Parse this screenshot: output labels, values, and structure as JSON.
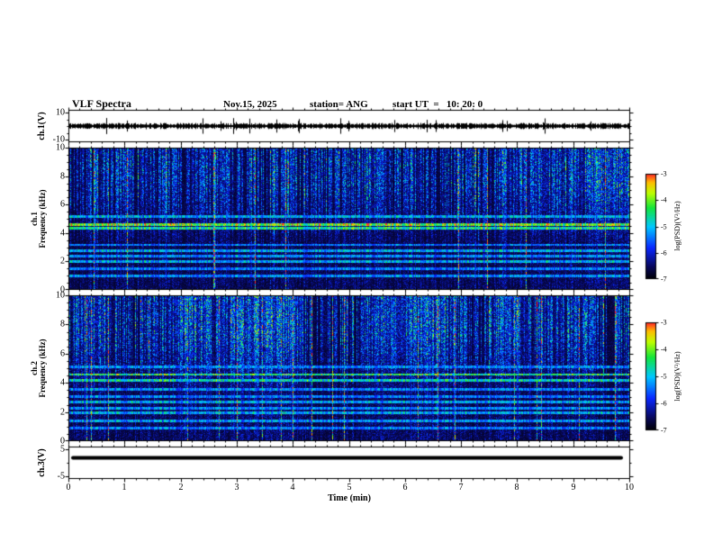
{
  "header": {
    "title": "VLF Spectra",
    "date": "Nov.15, 2025",
    "station": "station= ANG",
    "start_ut": "start UT  =   10: 20: 0"
  },
  "axes": {
    "x": {
      "label": "Time (min)",
      "lim": [
        0,
        10
      ],
      "ticks": [
        0,
        1,
        2,
        3,
        4,
        5,
        6,
        7,
        8,
        9,
        10
      ]
    },
    "ch1_voltage": {
      "label": "ch.1(V)",
      "lim": [
        -12,
        12
      ],
      "ticks": [
        10,
        -10
      ]
    },
    "ch1_freq": {
      "label_line1": "ch.1",
      "label_line2": "Frequency (kHz)",
      "lim": [
        0,
        10
      ],
      "ticks": [
        10,
        8,
        6,
        4,
        2,
        0
      ]
    },
    "ch2_freq": {
      "label_line1": "ch.2",
      "label_line2": "Frequency (kHz)",
      "lim": [
        0,
        10
      ],
      "ticks": [
        10,
        8,
        6,
        4,
        2,
        0
      ]
    },
    "ch3_voltage": {
      "label": "ch.3(V)",
      "lim": [
        -6.2,
        6.2
      ],
      "ticks": [
        5,
        -5
      ]
    }
  },
  "colorbar": {
    "label": "log(PSD)(V²/Hz)",
    "lim": [
      -7,
      -3
    ],
    "ticks": [
      -3,
      -4,
      -5,
      -6,
      -7
    ]
  },
  "chart_data": [
    {
      "type": "line",
      "name": "ch1_voltage_waveform",
      "ylabel": "ch.1(V)",
      "xlim": [
        0,
        10
      ],
      "ylim": [
        -12,
        12
      ],
      "yticks": [
        10,
        -10
      ],
      "mean_v": 0,
      "typical_amplitude_v": 2,
      "spike_amplitude_v": 5,
      "description": "Continuous broadband noise waveform centred on 0 V, envelope about ±2 V with frequent impulsive spikes to about ±5 V across the full 10 minutes"
    },
    {
      "type": "heatmap",
      "name": "ch1_spectrogram",
      "ylabel": "ch.1 Frequency (kHz)",
      "xlim": [
        0,
        10
      ],
      "ylim": [
        0,
        10
      ],
      "yticks": [
        0,
        2,
        4,
        6,
        8,
        10
      ],
      "zlabel": "log(PSD)(V²/Hz)",
      "zlim": [
        -7,
        -3
      ],
      "background_psd": -6.8,
      "sferic_streaks": "dense full-band vertical impulses every few seconds, strongest (green/yellow, PSD about -4) between 5 and 10 kHz",
      "tone_lines": [
        {
          "khz": 1.0,
          "psd": -5.2
        },
        {
          "khz": 1.5,
          "psd": -5.3
        },
        {
          "khz": 2.0,
          "psd": -5.0
        },
        {
          "khz": 2.4,
          "psd": -5.2
        },
        {
          "khz": 2.8,
          "psd": -5.0
        },
        {
          "khz": 3.2,
          "psd": -5.3
        },
        {
          "khz": 4.35,
          "psd": -4.4
        },
        {
          "khz": 4.6,
          "psd": -3.8
        },
        {
          "khz": 5.2,
          "psd": -5.0
        }
      ]
    },
    {
      "type": "heatmap",
      "name": "ch2_spectrogram",
      "ylabel": "ch.2 Frequency (kHz)",
      "xlim": [
        0,
        10
      ],
      "ylim": [
        0,
        10
      ],
      "yticks": [
        0,
        2,
        4,
        6,
        8,
        10
      ],
      "zlabel": "log(PSD)(V²/Hz)",
      "zlim": [
        -7,
        -3
      ],
      "background_psd": -6.8,
      "sferic_streaks": "dense full-band vertical impulses, bright green patches mostly between 5 and 10 kHz",
      "tone_lines": [
        {
          "khz": 0.9,
          "psd": -5.3
        },
        {
          "khz": 1.4,
          "psd": -5.1
        },
        {
          "khz": 2.0,
          "psd": -5.0
        },
        {
          "khz": 2.3,
          "psd": -5.2
        },
        {
          "khz": 2.7,
          "psd": -5.0
        },
        {
          "khz": 3.1,
          "psd": -5.3
        },
        {
          "khz": 3.6,
          "psd": -5.2
        },
        {
          "khz": 4.2,
          "psd": -4.6
        },
        {
          "khz": 4.6,
          "psd": -4.2
        },
        {
          "khz": 5.1,
          "psd": -5.2
        }
      ]
    },
    {
      "type": "line",
      "name": "ch3_voltage_waveform",
      "ylabel": "ch.3(V)",
      "xlim": [
        0,
        10
      ],
      "ylim": [
        -6.2,
        6.2
      ],
      "yticks": [
        5,
        -5
      ],
      "constant_level_v": 2,
      "description": "Constant flat thick trace at about +2 V for the entire 10-minute interval"
    }
  ]
}
